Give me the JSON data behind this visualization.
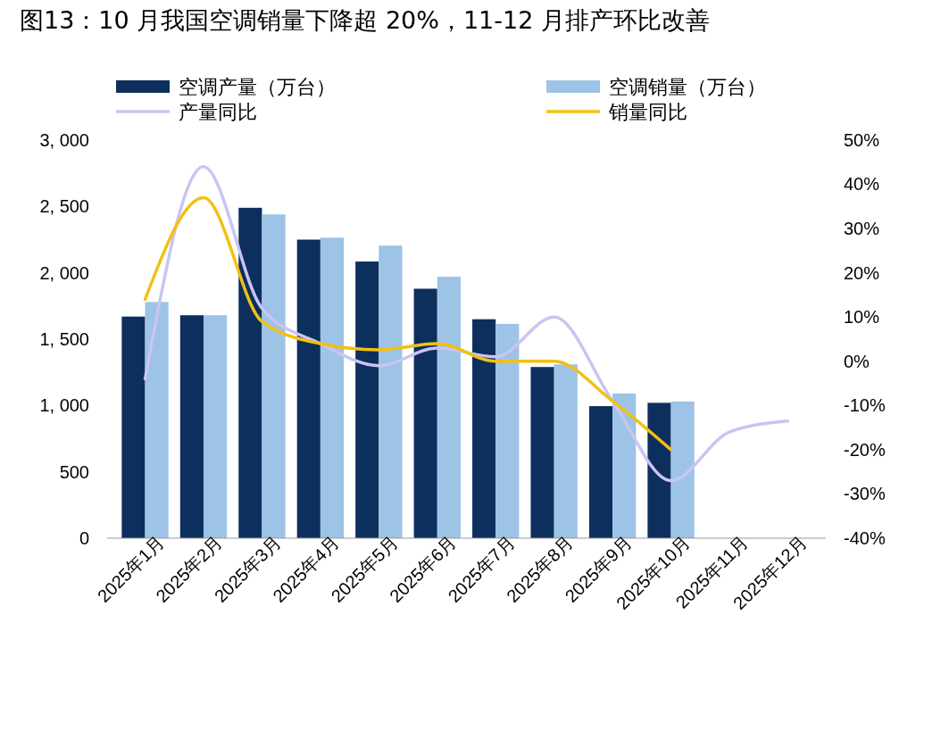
{
  "chart_data": {
    "type": "bar",
    "title": "图13：10 月我国空调销量下降超 20%，11-12 月排产环比改善",
    "categories": [
      "2025年1月",
      "2025年2月",
      "2025年3月",
      "2025年4月",
      "2025年5月",
      "2025年6月",
      "2025年7月",
      "2025年8月",
      "2025年9月",
      "2025年10月",
      "2025年11月",
      "2025年12月"
    ],
    "series": [
      {
        "name": "空调产量（万台）",
        "color": "#0d2f5e",
        "values": [
          1670,
          1680,
          2490,
          2250,
          2085,
          1880,
          1650,
          1290,
          995,
          1020,
          null,
          null
        ]
      },
      {
        "name": "空调销量（万台）",
        "color": "#9dc3e6",
        "values": [
          1780,
          1680,
          2440,
          2265,
          2205,
          1970,
          1615,
          1310,
          1090,
          1030,
          null,
          null
        ]
      },
      {
        "name": "产量同比",
        "type": "line",
        "axis": "y2",
        "color": "#c9c5f2",
        "values": [
          -4,
          44,
          12,
          4,
          -1,
          3,
          1,
          10,
          -9,
          -27,
          -16,
          -13.5
        ]
      },
      {
        "name": "销量同比",
        "type": "line",
        "axis": "y2",
        "color": "#f2c014",
        "values": [
          14,
          37,
          9,
          4,
          2.6,
          4,
          0,
          0,
          -9,
          -20,
          null,
          null
        ]
      }
    ],
    "ylim": [
      0,
      3000
    ],
    "yticks": [
      0,
      500,
      {
        "value": 1000,
        "label": "1, 000"
      },
      {
        "value": 1500,
        "label": "1, 500"
      },
      {
        "value": 2000,
        "label": "2, 000"
      },
      {
        "value": 2500,
        "label": "2, 500"
      },
      {
        "value": 3000,
        "label": "3, 000"
      }
    ],
    "y2lim": [
      -40,
      50
    ],
    "y2ticks": [
      {
        "value": -40,
        "label": "-40%"
      },
      {
        "value": -30,
        "label": "-30%"
      },
      {
        "value": -20,
        "label": "-20%"
      },
      {
        "value": -10,
        "label": "-10%"
      },
      {
        "value": 0,
        "label": "0%"
      },
      {
        "value": 10,
        "label": "10%"
      },
      {
        "value": 20,
        "label": "20%"
      },
      {
        "value": 30,
        "label": "30%"
      },
      {
        "value": 40,
        "label": "40%"
      },
      {
        "value": 50,
        "label": "50%"
      }
    ],
    "legend": "top",
    "grid": false,
    "marker": "none"
  }
}
